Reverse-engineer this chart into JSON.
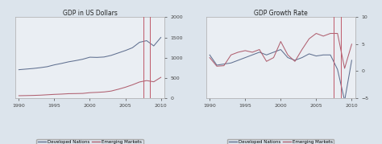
{
  "title_left": "GDP in US Dollars",
  "title_right": "GDP Growth Rate",
  "years": [
    1990,
    1991,
    1992,
    1993,
    1994,
    1995,
    1996,
    1997,
    1998,
    1999,
    2000,
    2001,
    2002,
    2003,
    2004,
    2005,
    2006,
    2007,
    2008,
    2009,
    2010
  ],
  "gdp_developed": [
    700,
    715,
    730,
    750,
    775,
    820,
    855,
    895,
    925,
    960,
    1010,
    1005,
    1015,
    1055,
    1115,
    1175,
    1245,
    1380,
    1420,
    1290,
    1500
  ],
  "gdp_emerging": [
    55,
    58,
    62,
    68,
    78,
    88,
    95,
    105,
    108,
    112,
    130,
    138,
    148,
    170,
    215,
    265,
    325,
    395,
    430,
    400,
    510
  ],
  "growth_developed": [
    3.0,
    1.1,
    1.3,
    1.5,
    2.0,
    2.5,
    3.0,
    3.5,
    3.0,
    3.5,
    4.0,
    2.5,
    2.0,
    2.5,
    3.2,
    2.8,
    3.0,
    3.0,
    0.3,
    -5.5,
    2.0
  ],
  "growth_emerging": [
    2.5,
    0.9,
    1.0,
    3.0,
    3.5,
    3.8,
    3.5,
    4.0,
    1.8,
    2.5,
    5.5,
    3.0,
    1.8,
    4.0,
    6.0,
    7.0,
    6.5,
    7.0,
    7.0,
    0.5,
    5.0
  ],
  "vlines_gdp": [
    2007.5,
    2008.5
  ],
  "vlines_growth": [
    2007.5,
    2008.5
  ],
  "color_developed": "#607090",
  "color_emerging": "#b06070",
  "vline_color": "#c06070",
  "xlim": [
    1989.5,
    2010.5
  ],
  "ylim_gdp": [
    0,
    2000
  ],
  "ylim_growth": [
    -5,
    10
  ],
  "yticks_gdp": [
    0,
    500,
    1000,
    1500,
    2000
  ],
  "yticks_growth": [
    -5,
    0,
    5,
    10
  ],
  "xticks": [
    1990,
    1995,
    2000,
    2005,
    2010
  ],
  "legend_labels": [
    "Developed Nations",
    "Emerging Markets"
  ],
  "bg_color": "#dce4ec",
  "plot_bg_color": "#eaeef3"
}
